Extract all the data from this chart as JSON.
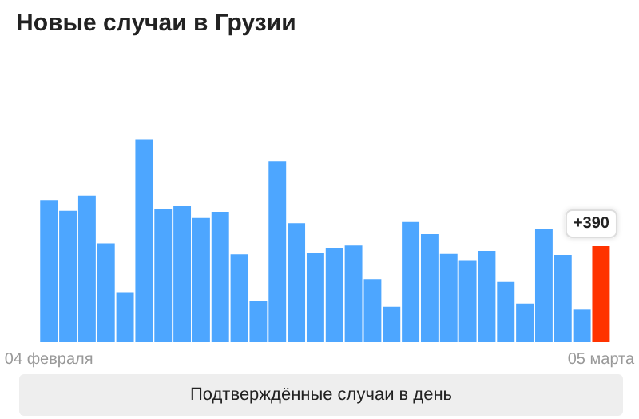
{
  "chart_data": {
    "type": "bar",
    "title": "Новые случаи в Грузии",
    "tick_labels": "x",
    "categories": [
      "04 февраля",
      null,
      null,
      null,
      null,
      null,
      null,
      null,
      null,
      null,
      null,
      null,
      null,
      null,
      null,
      null,
      null,
      null,
      null,
      null,
      null,
      null,
      null,
      null,
      null,
      null,
      null,
      null,
      null,
      "05 марта"
    ],
    "values": [
      577,
      533,
      595,
      401,
      203,
      823,
      541,
      554,
      504,
      529,
      356,
      166,
      736,
      483,
      363,
      383,
      392,
      256,
      144,
      488,
      438,
      358,
      333,
      370,
      244,
      157,
      458,
      354,
      132,
      390
    ],
    "colors": [
      "#4da6ff",
      "#4da6ff",
      "#4da6ff",
      "#4da6ff",
      "#4da6ff",
      "#4da6ff",
      "#4da6ff",
      "#4da6ff",
      "#4da6ff",
      "#4da6ff",
      "#4da6ff",
      "#4da6ff",
      "#4da6ff",
      "#4da6ff",
      "#4da6ff",
      "#4da6ff",
      "#4da6ff",
      "#4da6ff",
      "#4da6ff",
      "#4da6ff",
      "#4da6ff",
      "#4da6ff",
      "#4da6ff",
      "#4da6ff",
      "#4da6ff",
      "#4da6ff",
      "#4da6ff",
      "#4da6ff",
      "#4da6ff",
      "#ff3300"
    ],
    "value_labels": [
      null,
      null,
      null,
      null,
      null,
      null,
      null,
      null,
      null,
      null,
      null,
      null,
      null,
      null,
      null,
      null,
      null,
      null,
      null,
      null,
      null,
      null,
      null,
      null,
      null,
      null,
      null,
      null,
      null,
      "+390"
    ],
    "annotations": [
      "Подтверждённые случаи в день"
    ]
  }
}
